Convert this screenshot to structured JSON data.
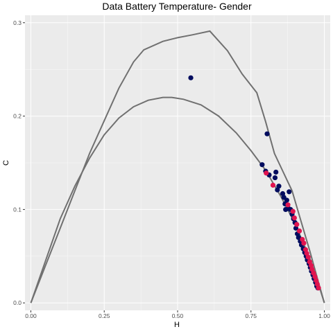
{
  "chart_data": {
    "type": "scatter",
    "title": "Data Battery Temperature- Gender",
    "xlabel": "H",
    "ylabel": "C",
    "xlim": [
      -0.02,
      1.02
    ],
    "ylim": [
      -0.008,
      0.308
    ],
    "x_ticks": [
      "0.00",
      "0.25",
      "0.50",
      "0.75",
      "1.00"
    ],
    "x_tick_values": [
      0,
      0.25,
      0.5,
      0.75,
      1.0
    ],
    "y_ticks": [
      "0.0",
      "0.1",
      "0.2",
      "0.3"
    ],
    "y_tick_values": [
      0,
      0.1,
      0.2,
      0.3
    ],
    "grid": true,
    "legend": "none",
    "colors": {
      "panel": "#ebebeb",
      "grid_major": "#ffffff",
      "bound_line": "#707070",
      "series_navy": "#000c5e",
      "series_crimson": "#e0144f"
    },
    "bounds": {
      "upper": [
        [
          0.0,
          0.0
        ],
        [
          0.05,
          0.04
        ],
        [
          0.1,
          0.08
        ],
        [
          0.15,
          0.12
        ],
        [
          0.2,
          0.16
        ],
        [
          0.25,
          0.195
        ],
        [
          0.3,
          0.23
        ],
        [
          0.35,
          0.258
        ],
        [
          0.385,
          0.271
        ],
        [
          0.45,
          0.28
        ],
        [
          0.5,
          0.284
        ],
        [
          0.55,
          0.287
        ],
        [
          0.61,
          0.291
        ],
        [
          0.67,
          0.27
        ],
        [
          0.72,
          0.245
        ],
        [
          0.77,
          0.225
        ],
        [
          0.8,
          0.194
        ],
        [
          0.83,
          0.16
        ],
        [
          0.86,
          0.14
        ],
        [
          0.89,
          0.12
        ],
        [
          0.92,
          0.088
        ],
        [
          0.95,
          0.056
        ],
        [
          0.98,
          0.022
        ],
        [
          1.0,
          0.0
        ]
      ],
      "lower": [
        [
          0.0,
          0.0
        ],
        [
          0.05,
          0.045
        ],
        [
          0.1,
          0.09
        ],
        [
          0.15,
          0.125
        ],
        [
          0.2,
          0.155
        ],
        [
          0.25,
          0.18
        ],
        [
          0.3,
          0.198
        ],
        [
          0.35,
          0.21
        ],
        [
          0.4,
          0.217
        ],
        [
          0.45,
          0.22
        ],
        [
          0.48,
          0.22
        ],
        [
          0.52,
          0.218
        ],
        [
          0.58,
          0.212
        ],
        [
          0.64,
          0.2
        ],
        [
          0.7,
          0.182
        ],
        [
          0.75,
          0.163
        ],
        [
          0.8,
          0.142
        ],
        [
          0.85,
          0.115
        ],
        [
          0.9,
          0.085
        ],
        [
          0.95,
          0.048
        ],
        [
          0.98,
          0.02
        ],
        [
          1.0,
          0.0
        ]
      ]
    },
    "series": [
      {
        "color": "#000c5e",
        "points": [
          [
            0.545,
            0.241
          ],
          [
            0.805,
            0.181
          ],
          [
            0.788,
            0.148
          ],
          [
            0.8,
            0.141
          ],
          [
            0.812,
            0.137
          ],
          [
            0.835,
            0.14
          ],
          [
            0.832,
            0.134
          ],
          [
            0.845,
            0.125
          ],
          [
            0.84,
            0.121
          ],
          [
            0.858,
            0.117
          ],
          [
            0.862,
            0.113
          ],
          [
            0.88,
            0.119
          ],
          [
            0.872,
            0.11
          ],
          [
            0.866,
            0.106
          ],
          [
            0.868,
            0.1
          ],
          [
            0.878,
            0.101
          ],
          [
            0.885,
            0.1
          ],
          [
            0.89,
            0.095
          ],
          [
            0.895,
            0.09
          ],
          [
            0.9,
            0.086
          ],
          [
            0.903,
            0.08
          ],
          [
            0.908,
            0.074
          ],
          [
            0.912,
            0.07
          ],
          [
            0.918,
            0.066
          ],
          [
            0.922,
            0.062
          ],
          [
            0.928,
            0.058
          ],
          [
            0.933,
            0.054
          ],
          [
            0.938,
            0.05
          ],
          [
            0.942,
            0.046
          ],
          [
            0.948,
            0.042
          ],
          [
            0.952,
            0.038
          ],
          [
            0.956,
            0.034
          ],
          [
            0.961,
            0.03
          ],
          [
            0.965,
            0.026
          ],
          [
            0.97,
            0.022
          ],
          [
            0.974,
            0.018
          ],
          [
            0.978,
            0.016
          ]
        ]
      },
      {
        "color": "#e0144f",
        "points": [
          [
            0.802,
            0.139
          ],
          [
            0.825,
            0.126
          ],
          [
            0.876,
            0.105
          ],
          [
            0.893,
            0.098
          ],
          [
            0.898,
            0.091
          ],
          [
            0.906,
            0.084
          ],
          [
            0.915,
            0.077
          ],
          [
            0.925,
            0.068
          ],
          [
            0.93,
            0.064
          ],
          [
            0.936,
            0.057
          ],
          [
            0.94,
            0.053
          ],
          [
            0.945,
            0.049
          ],
          [
            0.95,
            0.044
          ],
          [
            0.955,
            0.04
          ],
          [
            0.958,
            0.036
          ],
          [
            0.963,
            0.032
          ],
          [
            0.968,
            0.028
          ],
          [
            0.972,
            0.024
          ],
          [
            0.976,
            0.02
          ],
          [
            0.98,
            0.016
          ]
        ]
      }
    ]
  }
}
